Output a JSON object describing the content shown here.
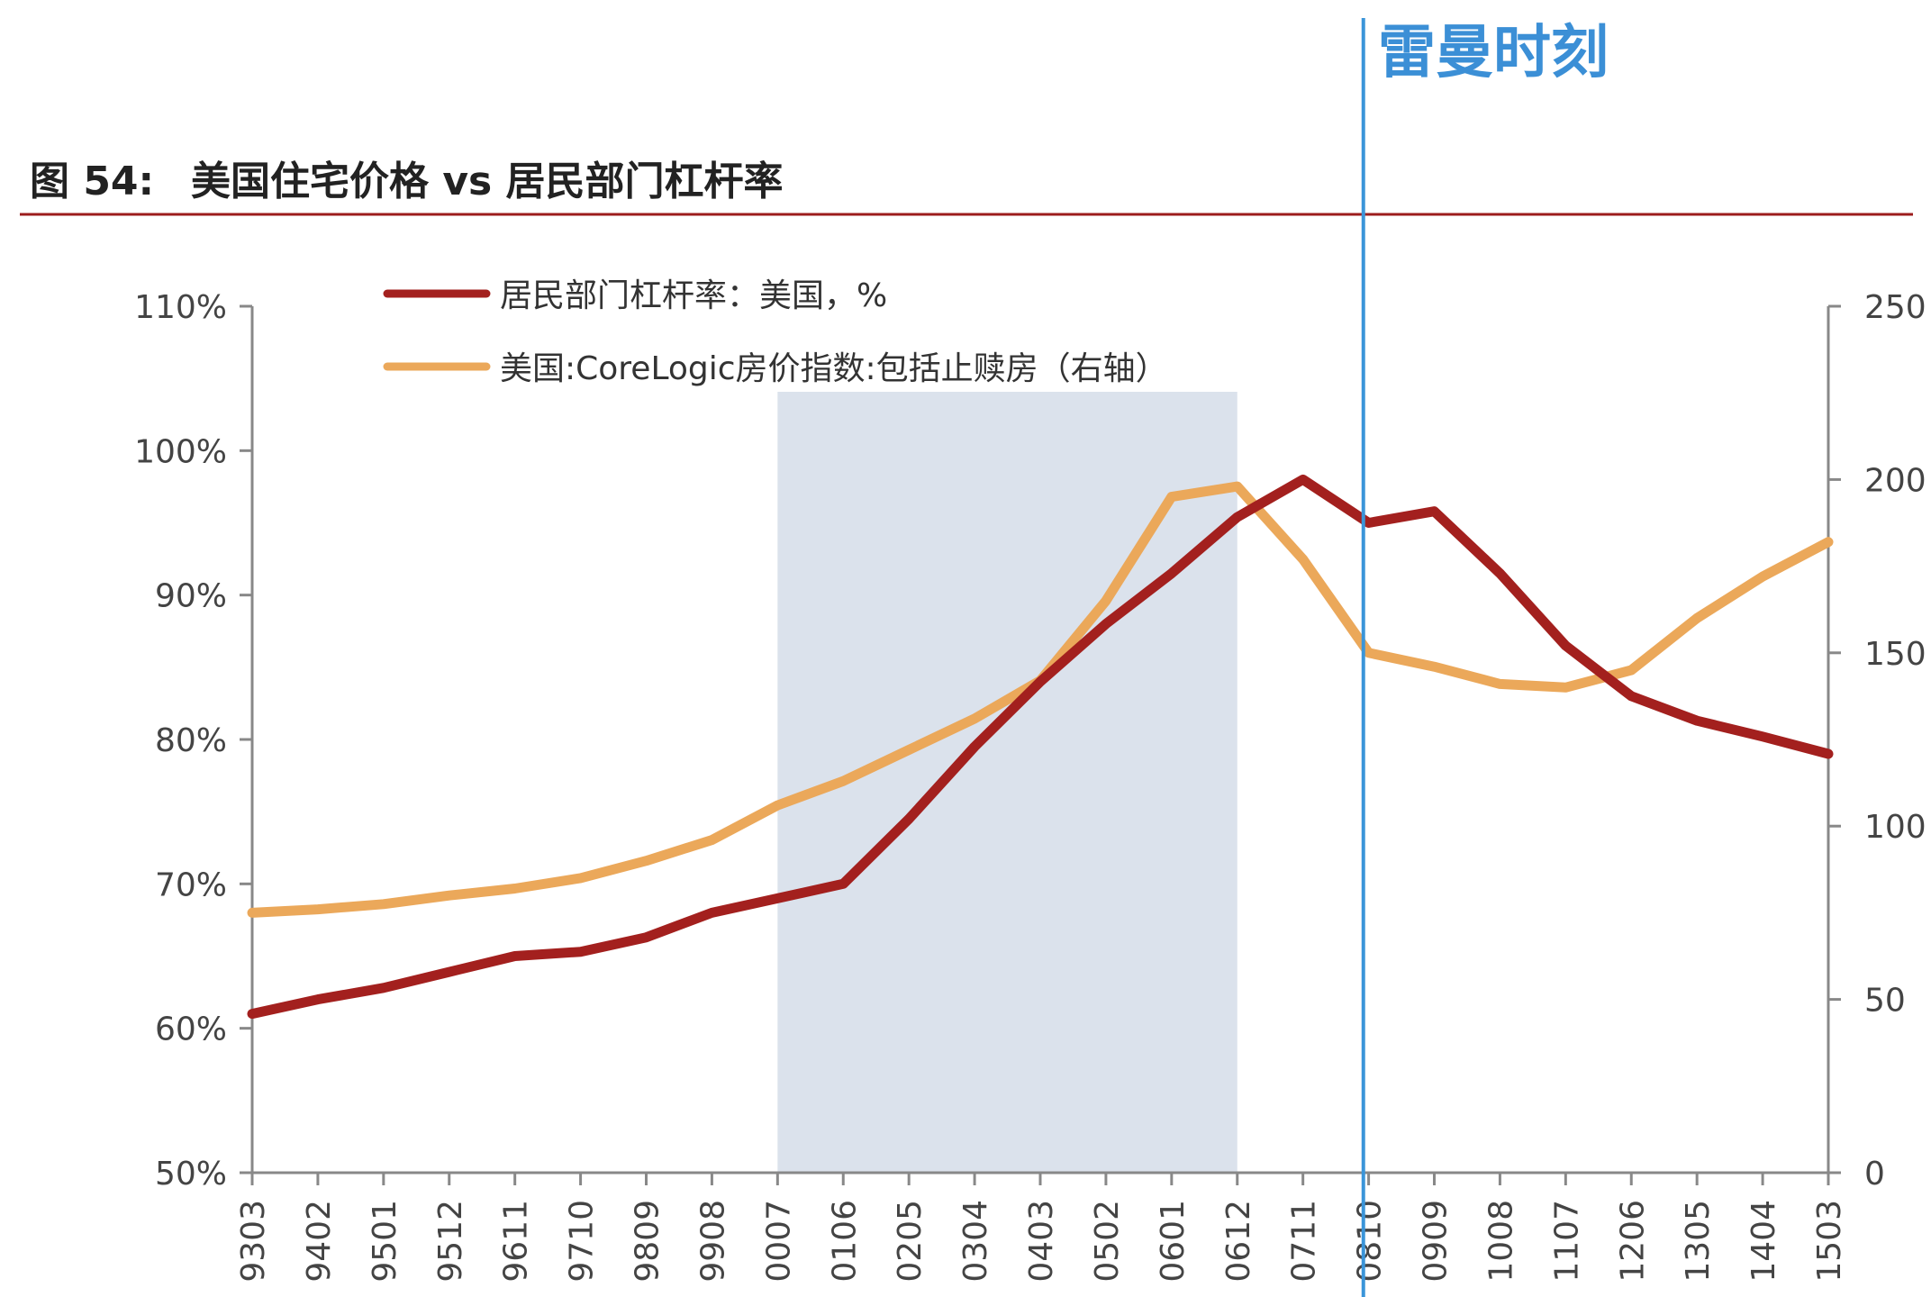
{
  "header": {
    "figure_number": "图 54:",
    "title": "美国住宅价格 vs 居民部门杠杆率"
  },
  "annotation": {
    "label": "雷曼时刻",
    "x": "0809",
    "color": "#3b95d9"
  },
  "colors": {
    "leverage": "#a3201e",
    "house_price": "#eba85a",
    "shade": "#dbe2ec",
    "title_rule": "#9c1c1c",
    "axis": "#888888"
  },
  "chart_data": {
    "type": "line",
    "title": "美国住宅价格 vs 居民部门杠杆率",
    "xlabel": "",
    "ylabel": "",
    "x_ticks": [
      "9303",
      "9402",
      "9501",
      "9512",
      "9611",
      "9710",
      "9809",
      "9908",
      "0007",
      "0106",
      "0205",
      "0304",
      "0403",
      "0502",
      "0601",
      "0612",
      "0711",
      "0810",
      "0909",
      "1008",
      "1107",
      "1206",
      "1305",
      "1404",
      "1503"
    ],
    "y_left": {
      "ylim": [
        50,
        110
      ],
      "ticks": [
        "110%",
        "100%",
        "90%",
        "80%",
        "70%",
        "60%",
        "50%"
      ]
    },
    "y_right": {
      "ylim": [
        0,
        250
      ],
      "ticks": [
        "250",
        "200",
        "150",
        "100",
        "50",
        "0"
      ]
    },
    "shaded_region": {
      "from": "0007",
      "to": "0612"
    },
    "legend_position": "top-left",
    "series": [
      {
        "name": "居民部门杠杆率：美国，%",
        "axis": "left",
        "x": [
          "9303",
          "9402",
          "9501",
          "9512",
          "9611",
          "9710",
          "9809",
          "9908",
          "0007",
          "0106",
          "0205",
          "0304",
          "0403",
          "0502",
          "0601",
          "0612",
          "0711",
          "0810",
          "0909",
          "1008",
          "1107",
          "1206",
          "1305",
          "1404",
          "1503"
        ],
        "values": [
          61,
          62,
          62.8,
          63.9,
          65,
          65.3,
          66.3,
          68,
          69,
          70,
          74.5,
          79.5,
          84,
          88,
          91.5,
          95.4,
          98,
          95,
          95.8,
          91.5,
          86.5,
          83,
          81.3,
          80.2,
          79
        ]
      },
      {
        "name": "美国:CoreLogic房价指数:包括止赎房（右轴）",
        "axis": "right",
        "x": [
          "9303",
          "9402",
          "9501",
          "9512",
          "9611",
          "9710",
          "9809",
          "9908",
          "0007",
          "0106",
          "0205",
          "0304",
          "0403",
          "0502",
          "0601",
          "0612",
          "0711",
          "0810",
          "0909",
          "1008",
          "1107",
          "1206",
          "1305",
          "1404",
          "1503"
        ],
        "values": [
          75,
          76,
          77.5,
          80,
          82,
          85,
          90,
          96,
          106,
          113,
          122,
          131,
          142,
          165,
          195,
          198,
          177,
          150,
          146,
          141,
          140,
          145,
          160,
          172,
          182
        ]
      }
    ]
  }
}
